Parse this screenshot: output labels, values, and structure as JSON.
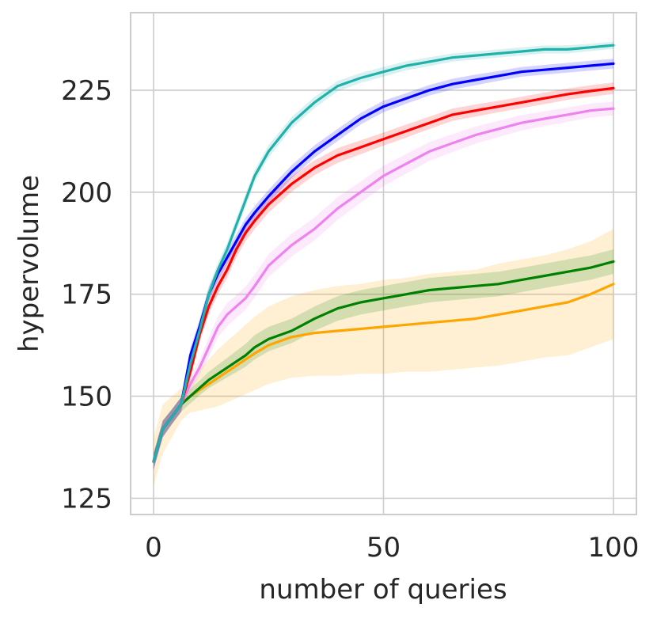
{
  "chart_data": {
    "type": "line",
    "title": "",
    "xlabel": "number of queries",
    "ylabel": "hypervolume",
    "xlim": [
      -5,
      105
    ],
    "ylim": [
      121,
      244
    ],
    "xticks": [
      0,
      50,
      100
    ],
    "yticks": [
      125,
      150,
      175,
      200,
      225
    ],
    "grid": true,
    "legend": "none",
    "x": [
      0,
      2,
      4,
      6,
      8,
      10,
      12,
      14,
      16,
      18,
      20,
      22,
      25,
      30,
      35,
      40,
      45,
      50,
      55,
      60,
      65,
      70,
      75,
      80,
      85,
      90,
      95,
      100
    ],
    "series": [
      {
        "name": "teal",
        "color": "#20b2aa",
        "values": [
          134,
          142,
          145,
          148,
          158,
          166,
          175,
          181,
          186,
          192,
          198,
          204,
          210,
          217,
          222,
          226,
          228,
          229.5,
          231,
          232,
          233,
          233.5,
          234,
          234.5,
          235,
          235,
          235.5,
          236
        ],
        "band": [
          2,
          2,
          1.8,
          1.8,
          1.8,
          1.8,
          1.8,
          1.8,
          1.6,
          1.6,
          1.6,
          1.5,
          1.5,
          1.4,
          1.4,
          1.3,
          1.2,
          1.2,
          1.1,
          1.1,
          1.0,
          1.0,
          1.0,
          1.0,
          1.0,
          1.0,
          0.9,
          0.9
        ]
      },
      {
        "name": "blue",
        "color": "#0000ff",
        "values": [
          134,
          142,
          145,
          148,
          160,
          167,
          175,
          180,
          184,
          188,
          192,
          195,
          199,
          205,
          210,
          214,
          218,
          221,
          223,
          225,
          226.5,
          227.5,
          228.5,
          229.5,
          230,
          230.5,
          231,
          231.5
        ],
        "band": [
          2,
          2,
          1.8,
          1.8,
          1.8,
          1.8,
          1.8,
          1.8,
          1.7,
          1.7,
          1.7,
          1.6,
          1.6,
          1.6,
          1.5,
          1.5,
          1.4,
          1.4,
          1.3,
          1.3,
          1.3,
          1.3,
          1.2,
          1.2,
          1.2,
          1.2,
          1.2,
          1.2
        ]
      },
      {
        "name": "red",
        "color": "#ff0000",
        "values": [
          134,
          142,
          145,
          148,
          156,
          165,
          172,
          177,
          181,
          186,
          190,
          193,
          197,
          202,
          206,
          209,
          211,
          213,
          215,
          217,
          219,
          220,
          221,
          222,
          223,
          224,
          224.8,
          225.5
        ],
        "band": [
          2,
          2,
          1.8,
          1.8,
          1.8,
          1.8,
          2.0,
          2.0,
          2.0,
          2.0,
          2.0,
          2.0,
          2.0,
          1.9,
          1.8,
          1.8,
          1.7,
          1.6,
          1.6,
          1.5,
          1.5,
          1.5,
          1.4,
          1.4,
          1.4,
          1.4,
          1.4,
          1.4
        ]
      },
      {
        "name": "violet",
        "color": "#ee82ee",
        "values": [
          134,
          142,
          145,
          148,
          153,
          157,
          162,
          167,
          170,
          172,
          174,
          177,
          182,
          187,
          191,
          196,
          200,
          204,
          207,
          210,
          212,
          214,
          215.5,
          217,
          218,
          219,
          220,
          220.5
        ],
        "band": [
          2,
          2,
          1.8,
          1.8,
          1.8,
          2.0,
          2.4,
          2.6,
          2.8,
          2.8,
          2.8,
          2.8,
          2.8,
          2.8,
          2.8,
          2.8,
          2.6,
          2.5,
          2.4,
          2.3,
          2.2,
          2.1,
          2.0,
          1.9,
          1.8,
          1.8,
          1.7,
          1.7
        ]
      },
      {
        "name": "green",
        "color": "#008000",
        "values": [
          134,
          142,
          145,
          148,
          150,
          152,
          154,
          155.5,
          157,
          158.5,
          160,
          162,
          164,
          166,
          169,
          171.5,
          173,
          174,
          175,
          176,
          176.5,
          177,
          177.5,
          178.5,
          179.5,
          180.5,
          181.5,
          183
        ],
        "band": [
          2,
          2,
          1.8,
          1.8,
          1.8,
          1.8,
          2.0,
          2.2,
          2.4,
          2.6,
          2.8,
          3.0,
          3.0,
          3.0,
          3.0,
          3.0,
          3.0,
          3.0,
          3.0,
          3.0,
          3.0,
          3.0,
          3.0,
          3.0,
          3.0,
          3.0,
          3.0,
          3.0
        ]
      },
      {
        "name": "orange",
        "color": "#ffa500",
        "values": [
          134,
          142,
          145,
          148,
          150,
          151.5,
          153,
          154.5,
          156,
          157.5,
          159,
          160.5,
          162.5,
          164.5,
          165.5,
          166,
          166.5,
          167,
          167.5,
          168,
          168.5,
          169,
          170,
          171,
          172,
          173,
          175,
          177.5
        ],
        "band": [
          6,
          6,
          5,
          4,
          4,
          5,
          6,
          7,
          7.5,
          8,
          8.5,
          9,
          9.5,
          10,
          10.5,
          11,
          11,
          11.5,
          11.5,
          12,
          12,
          12,
          12.5,
          12.5,
          12.5,
          13,
          13,
          13.5
        ]
      }
    ]
  }
}
